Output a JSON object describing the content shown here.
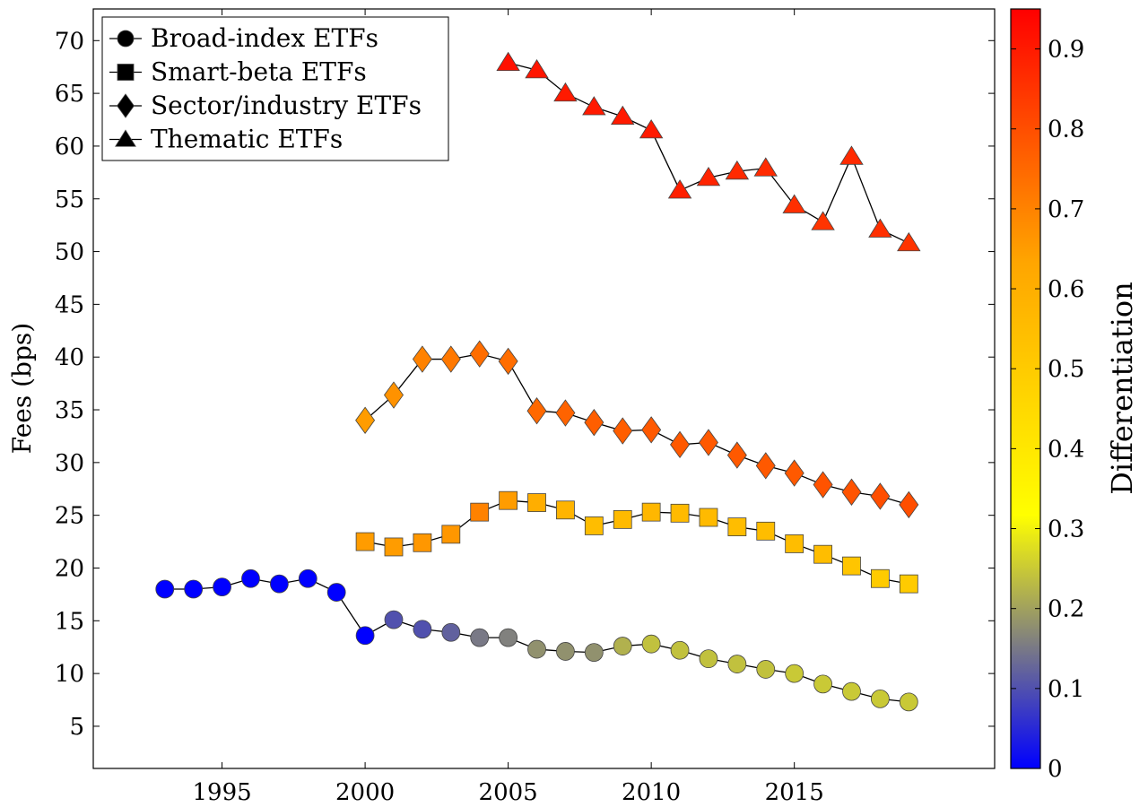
{
  "chart_data": {
    "type": "scatter",
    "title": "",
    "xlabel": "",
    "ylabel": "Fees (bps)",
    "colorbar_label": "Differentiation",
    "xlim": [
      1990.5,
      2022
    ],
    "ylim": [
      1,
      73
    ],
    "xticks": [
      1995,
      2000,
      2005,
      2010,
      2015
    ],
    "yticks": [
      5,
      10,
      15,
      20,
      25,
      30,
      35,
      40,
      45,
      50,
      55,
      60,
      65,
      70
    ],
    "colorbar_range": [
      0,
      0.95
    ],
    "colorbar_ticks": [
      0,
      0.1,
      0.2,
      0.3,
      0.4,
      0.5,
      0.6,
      0.7,
      0.8,
      0.9
    ],
    "colormap": [
      "#0000ff",
      "#ffff00",
      "#ffa500",
      "#ff0000"
    ],
    "grid": false,
    "legend_position": "top-left",
    "series": [
      {
        "name": "Broad-index ETFs",
        "marker": "circle",
        "x": [
          1993,
          1994,
          1995,
          1996,
          1997,
          1998,
          1999,
          2000,
          2001,
          2002,
          2003,
          2004,
          2005,
          2006,
          2007,
          2008,
          2009,
          2010,
          2011,
          2012,
          2013,
          2014,
          2015,
          2016,
          2017,
          2018,
          2019
        ],
        "y": [
          18.0,
          18.0,
          18.2,
          19.0,
          18.5,
          19.0,
          17.7,
          13.6,
          15.1,
          14.2,
          13.9,
          13.4,
          13.4,
          12.3,
          12.1,
          12.0,
          12.6,
          12.8,
          12.2,
          11.4,
          10.9,
          10.4,
          10.0,
          9.0,
          8.3,
          7.6,
          7.3
        ],
        "differentiation": [
          0.0,
          0.0,
          0.0,
          0.0,
          0.0,
          0.0,
          0.0,
          0.0,
          0.1,
          0.1,
          0.12,
          0.15,
          0.16,
          0.18,
          0.18,
          0.18,
          0.22,
          0.24,
          0.24,
          0.24,
          0.24,
          0.24,
          0.25,
          0.25,
          0.25,
          0.25,
          0.25
        ]
      },
      {
        "name": "Smart-beta ETFs",
        "marker": "square",
        "x": [
          2000,
          2001,
          2002,
          2003,
          2004,
          2005,
          2006,
          2007,
          2008,
          2009,
          2010,
          2011,
          2012,
          2013,
          2014,
          2015,
          2016,
          2017,
          2018,
          2019
        ],
        "y": [
          22.5,
          22.0,
          22.4,
          23.2,
          25.3,
          26.4,
          26.2,
          25.5,
          24.0,
          24.6,
          25.3,
          25.2,
          24.8,
          23.9,
          23.5,
          22.3,
          21.3,
          20.2,
          19.0,
          18.5
        ],
        "differentiation": [
          0.65,
          0.65,
          0.66,
          0.66,
          0.7,
          0.65,
          0.6,
          0.58,
          0.55,
          0.56,
          0.57,
          0.56,
          0.56,
          0.55,
          0.55,
          0.55,
          0.55,
          0.52,
          0.5,
          0.5
        ]
      },
      {
        "name": "Sector/industry ETFs",
        "marker": "diamond",
        "x": [
          2000,
          2001,
          2002,
          2003,
          2004,
          2005,
          2006,
          2007,
          2008,
          2009,
          2010,
          2011,
          2012,
          2013,
          2014,
          2015,
          2016,
          2017,
          2018,
          2019
        ],
        "y": [
          34.0,
          36.4,
          39.8,
          39.8,
          40.3,
          39.6,
          34.9,
          34.7,
          33.8,
          33.0,
          33.1,
          31.7,
          31.9,
          30.7,
          29.7,
          29.0,
          27.9,
          27.2,
          26.8,
          26.0
        ],
        "differentiation": [
          0.65,
          0.67,
          0.7,
          0.72,
          0.74,
          0.74,
          0.75,
          0.76,
          0.77,
          0.77,
          0.78,
          0.78,
          0.78,
          0.78,
          0.78,
          0.78,
          0.79,
          0.79,
          0.8,
          0.8
        ]
      },
      {
        "name": "Thematic ETFs",
        "marker": "triangle",
        "x": [
          2005,
          2006,
          2007,
          2008,
          2009,
          2010,
          2011,
          2012,
          2013,
          2014,
          2015,
          2016,
          2017,
          2018,
          2019
        ],
        "y": [
          67.9,
          67.2,
          65.0,
          63.7,
          62.8,
          61.5,
          55.8,
          57.0,
          57.6,
          57.9,
          54.4,
          52.8,
          59.0,
          52.1,
          50.8
        ],
        "differentiation": [
          0.92,
          0.91,
          0.9,
          0.9,
          0.9,
          0.9,
          0.89,
          0.88,
          0.87,
          0.87,
          0.86,
          0.85,
          0.87,
          0.86,
          0.85
        ]
      }
    ]
  }
}
